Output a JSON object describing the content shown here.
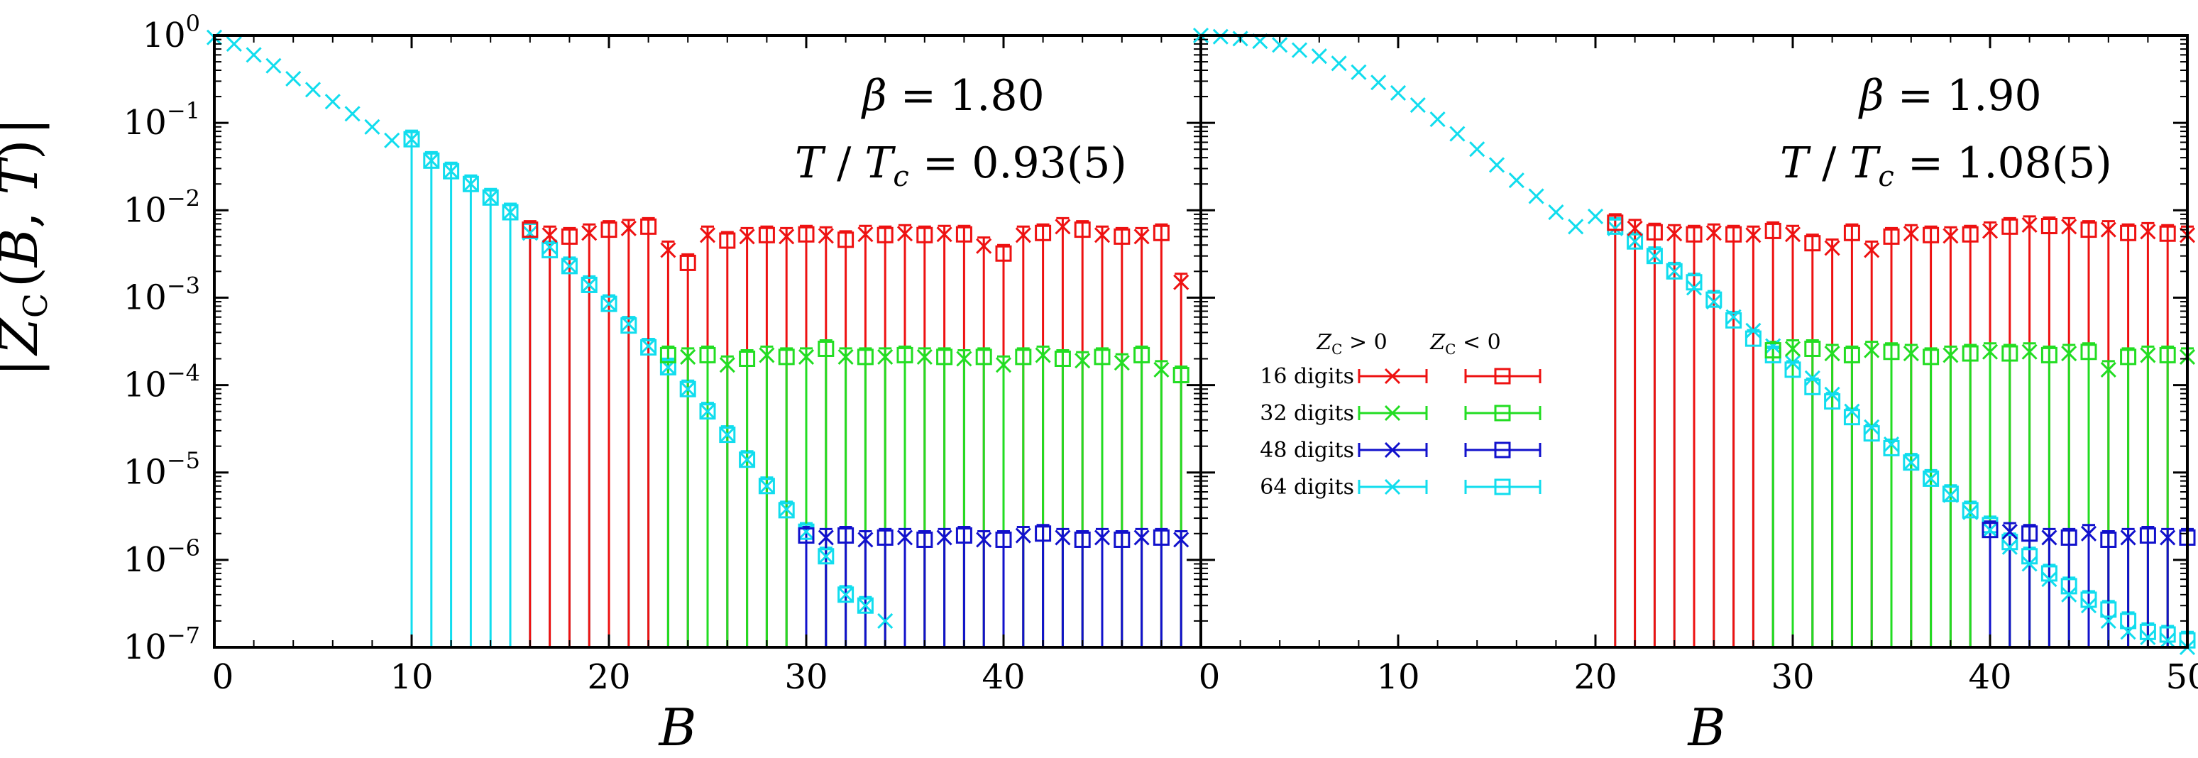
{
  "figure": {
    "ylabel": "|Z_C(B, T)|",
    "legend_headers": [
      "Z_C > 0",
      "Z_C < 0"
    ]
  },
  "colors": {
    "16 digits": "#ee1111",
    "32 digits": "#22dd22",
    "48 digits": "#1111cc",
    "64 digits": "#11ddee"
  },
  "chart_data": [
    {
      "type": "scatter",
      "panel": "left",
      "xlabel": "B",
      "ylabel": "|Z_C(B, T)|",
      "annotation": [
        "β = 1.80",
        "T / T_c = 0.93(5)"
      ],
      "xlim": [
        0,
        50
      ],
      "ylim": [
        1e-07,
        1
      ],
      "yscale": "log",
      "xticks": [
        "0",
        "10",
        "20",
        "30",
        "40"
      ],
      "yticks": [
        "10^0",
        "10^-1",
        "10^-2",
        "10^-3",
        "10^-4",
        "10^-5",
        "10^-6",
        "10^-7"
      ],
      "legend": "none",
      "series": [
        {
          "name": "64 digits",
          "marker": "cross",
          "x": [
            0,
            1,
            2,
            3,
            4,
            5,
            6,
            7,
            8,
            9,
            10,
            11,
            12,
            13,
            14,
            15,
            16,
            17,
            18,
            19,
            20,
            21,
            22,
            23,
            24,
            25,
            26,
            27,
            28,
            29,
            30,
            31,
            32,
            33,
            34
          ],
          "y": [
            0.95,
            0.8,
            0.6,
            0.45,
            0.32,
            0.24,
            0.175,
            0.127,
            0.09,
            0.063,
            0.065,
            0.037,
            0.028,
            0.02,
            0.014,
            0.0095,
            0.0055,
            0.0038,
            0.0023,
            0.0014,
            0.00085,
            0.0005,
            0.00028,
            0.00016,
            9e-05,
            5e-05,
            2.7e-05,
            1.4e-05,
            7e-06,
            3.8e-06,
            2.1e-06,
            1.1e-06,
            4e-07,
            3e-07,
            2e-07
          ]
        },
        {
          "name": "64 digits",
          "marker": "square",
          "x": [
            10,
            11,
            12,
            13,
            14,
            15,
            16,
            17,
            18,
            19,
            20,
            21,
            22,
            23,
            24,
            25,
            26,
            27,
            28,
            29,
            30,
            31,
            32,
            33
          ],
          "y": [
            0.065,
            0.037,
            0.028,
            0.02,
            0.014,
            0.0095,
            0.0058,
            0.0035,
            0.0023,
            0.0014,
            0.00085,
            0.00048,
            0.00027,
            0.00016,
            9e-05,
            5e-05,
            2.7e-05,
            1.4e-05,
            7e-06,
            3.7e-06,
            2.1e-06,
            1.1e-06,
            4e-07,
            3e-07
          ]
        },
        {
          "name": "16 digits",
          "marker": "mixed",
          "x": [
            16,
            17,
            18,
            19,
            20,
            21,
            22,
            23,
            24,
            25,
            26,
            27,
            28,
            29,
            30,
            31,
            32,
            33,
            34,
            35,
            36,
            37,
            38,
            39,
            40,
            41,
            42,
            43,
            44,
            45,
            46,
            47,
            48,
            49
          ],
          "y": [
            0.006,
            0.0052,
            0.005,
            0.0055,
            0.006,
            0.0062,
            0.0065,
            0.0035,
            0.0025,
            0.0052,
            0.0045,
            0.005,
            0.0052,
            0.005,
            0.0053,
            0.0051,
            0.0046,
            0.0053,
            0.0052,
            0.0054,
            0.0052,
            0.0053,
            0.0053,
            0.0039,
            0.0032,
            0.0052,
            0.0055,
            0.0065,
            0.006,
            0.0052,
            0.005,
            0.005,
            0.0055,
            0.0015
          ]
        },
        {
          "name": "32 digits",
          "marker": "mixed",
          "x": [
            23,
            24,
            25,
            26,
            27,
            28,
            29,
            30,
            31,
            32,
            33,
            34,
            35,
            36,
            37,
            38,
            39,
            40,
            41,
            42,
            43,
            44,
            45,
            46,
            47,
            48,
            49
          ],
          "y": [
            0.00022,
            0.00021,
            0.00022,
            0.00017,
            0.0002,
            0.00022,
            0.00021,
            0.00021,
            0.00026,
            0.00021,
            0.00021,
            0.00021,
            0.00022,
            0.00021,
            0.00021,
            0.0002,
            0.00021,
            0.00017,
            0.00021,
            0.00022,
            0.0002,
            0.00019,
            0.00021,
            0.00018,
            0.00022,
            0.00015,
            0.00013
          ]
        },
        {
          "name": "48 digits",
          "marker": "mixed",
          "x": [
            30,
            31,
            32,
            33,
            34,
            35,
            36,
            37,
            38,
            39,
            40,
            41,
            42,
            43,
            44,
            45,
            46,
            47,
            48,
            49
          ],
          "y": [
            1.9e-06,
            1.8e-06,
            1.9e-06,
            1.7e-06,
            1.8e-06,
            1.8e-06,
            1.7e-06,
            1.8e-06,
            1.9e-06,
            1.7e-06,
            1.7e-06,
            1.9e-06,
            2e-06,
            1.8e-06,
            1.7e-06,
            1.8e-06,
            1.7e-06,
            1.8e-06,
            1.8e-06,
            1.7e-06
          ]
        }
      ]
    },
    {
      "type": "scatter",
      "panel": "right",
      "xlabel": "B",
      "ylabel": "",
      "annotation": [
        "β = 1.90",
        "T / T_c = 1.08(5)"
      ],
      "xlim": [
        0,
        50
      ],
      "ylim": [
        1e-07,
        1
      ],
      "yscale": "log",
      "xticks": [
        "0",
        "10",
        "20",
        "30",
        "40",
        "50"
      ],
      "legend": "center-left",
      "legend_entries": [
        "16 digits",
        "32 digits",
        "48 digits",
        "64 digits"
      ],
      "series": [
        {
          "name": "64 digits",
          "marker": "cross",
          "x": [
            0,
            1,
            2,
            3,
            4,
            5,
            6,
            7,
            8,
            9,
            10,
            11,
            12,
            13,
            14,
            15,
            16,
            17,
            18,
            19,
            20,
            21,
            22,
            23,
            24,
            25,
            26,
            27,
            28,
            29,
            30,
            31,
            32,
            33,
            34,
            35,
            36,
            37,
            38,
            39,
            40,
            41,
            42,
            43,
            44,
            45,
            46,
            47,
            48,
            49,
            50
          ],
          "y": [
            1.0,
            0.97,
            0.92,
            0.86,
            0.78,
            0.68,
            0.58,
            0.48,
            0.38,
            0.29,
            0.22,
            0.16,
            0.11,
            0.075,
            0.05,
            0.033,
            0.022,
            0.0145,
            0.0095,
            0.0065,
            0.0085,
            0.0062,
            0.0044,
            0.003,
            0.002,
            0.0013,
            0.0009,
            0.0006,
            0.00042,
            0.00028,
            0.00018,
            0.00012,
            7.8e-05,
            5e-05,
            3.3e-05,
            2.1e-05,
            1.3e-05,
            8.5e-06,
            5.5e-06,
            3.5e-06,
            2.2e-06,
            1.4e-06,
            9e-07,
            6e-07,
            4e-07,
            3e-07,
            2e-07,
            1.5e-07,
            1.3e-07,
            1.2e-07,
            1e-07
          ]
        },
        {
          "name": "64 digits",
          "marker": "square",
          "x": [
            21,
            22,
            23,
            24,
            25,
            26,
            27,
            28,
            29,
            30,
            31,
            32,
            33,
            34,
            35,
            36,
            37,
            38,
            39,
            40,
            41,
            42,
            43,
            44,
            45,
            46,
            47,
            48,
            49,
            50
          ],
          "y": [
            0.0065,
            0.0044,
            0.003,
            0.002,
            0.0015,
            0.00095,
            0.00055,
            0.00034,
            0.00022,
            0.00015,
            9.5e-05,
            6.5e-05,
            4.3e-05,
            2.8e-05,
            1.9e-05,
            1.3e-05,
            8.5e-06,
            5.7e-06,
            3.7e-06,
            2.5e-06,
            1.6e-06,
            1.1e-06,
            7e-07,
            5e-07,
            3.5e-07,
            2.7e-07,
            2e-07,
            1.5e-07,
            1.4e-07,
            1.2e-07
          ]
        },
        {
          "name": "16 digits",
          "marker": "mixed",
          "x": [
            21,
            22,
            23,
            24,
            25,
            26,
            27,
            28,
            29,
            30,
            31,
            32,
            33,
            34,
            35,
            36,
            37,
            38,
            39,
            40,
            41,
            42,
            43,
            44,
            45,
            46,
            47,
            48,
            49,
            50
          ],
          "y": [
            0.0072,
            0.0062,
            0.0056,
            0.0054,
            0.0053,
            0.0055,
            0.0053,
            0.0052,
            0.0058,
            0.0053,
            0.0042,
            0.0037,
            0.0055,
            0.0035,
            0.005,
            0.0054,
            0.0052,
            0.0051,
            0.0053,
            0.0058,
            0.0065,
            0.0068,
            0.0066,
            0.0065,
            0.006,
            0.006,
            0.0055,
            0.0057,
            0.0054,
            0.0052
          ]
        },
        {
          "name": "32 digits",
          "marker": "mixed",
          "x": [
            29,
            30,
            31,
            32,
            33,
            34,
            35,
            36,
            37,
            38,
            39,
            40,
            41,
            42,
            43,
            44,
            45,
            46,
            47,
            48,
            49,
            50
          ],
          "y": [
            0.00025,
            0.00026,
            0.00026,
            0.00023,
            0.00022,
            0.00025,
            0.00024,
            0.00023,
            0.00021,
            0.00022,
            0.00023,
            0.00024,
            0.00023,
            0.00024,
            0.00022,
            0.00023,
            0.00024,
            0.00015,
            0.00021,
            0.00022,
            0.00022,
            0.00021
          ]
        },
        {
          "name": "48 digits",
          "marker": "mixed",
          "x": [
            40,
            41,
            42,
            43,
            44,
            45,
            46,
            47,
            48,
            49,
            50
          ],
          "y": [
            2.2e-06,
            2.1e-06,
            2e-06,
            1.8e-06,
            1.8e-06,
            2e-06,
            1.7e-06,
            1.8e-06,
            1.9e-06,
            1.8e-06,
            1.8e-06
          ]
        }
      ]
    }
  ]
}
